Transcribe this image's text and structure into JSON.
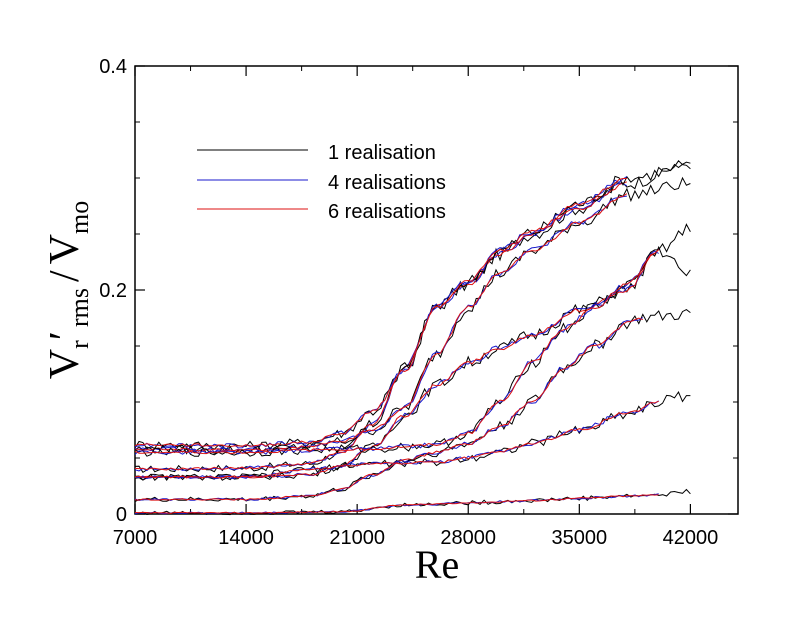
{
  "chart_data": {
    "type": "line",
    "title": "",
    "xlabel": "Re",
    "ylabel": {
      "main": "V",
      "sub1": "r",
      "prime": "′",
      "sub2": "rms",
      "slash": "/",
      "denom": "V",
      "denom_sub": "mo"
    },
    "xlim": [
      7000,
      45000
    ],
    "ylim": [
      0,
      0.4
    ],
    "xticks": [
      7000,
      14000,
      21000,
      28000,
      35000,
      42000
    ],
    "xtick_labels": [
      "7000",
      "14000",
      "21000",
      "28000",
      "35000",
      "42000"
    ],
    "yticks": [
      0,
      0.2,
      0.4
    ],
    "ytick_labels": [
      "0",
      "0.2",
      "0.4"
    ],
    "grid": false,
    "legend": {
      "position": "top-left",
      "entries": [
        {
          "label": "1 realisation",
          "color": "#000000"
        },
        {
          "label": "4 realisations",
          "color": "#1a1acc"
        },
        {
          "label": "6 realisations",
          "color": "#dd1111"
        }
      ]
    },
    "curves": [
      {
        "name": "curve-A",
        "xmax": 42000,
        "black_end": 0.313,
        "points": [
          [
            7000,
            0.04
          ],
          [
            14000,
            0.041
          ],
          [
            18000,
            0.045
          ],
          [
            20000,
            0.055
          ],
          [
            22000,
            0.08
          ],
          [
            24000,
            0.13
          ],
          [
            26000,
            0.185
          ],
          [
            28000,
            0.205
          ],
          [
            30000,
            0.232
          ],
          [
            32000,
            0.25
          ],
          [
            35000,
            0.273
          ],
          [
            38000,
            0.295
          ]
        ]
      },
      {
        "name": "curve-B",
        "xmax": 42000,
        "black_end": 0.31,
        "points": [
          [
            7000,
            0.062
          ],
          [
            14000,
            0.061
          ],
          [
            18000,
            0.064
          ],
          [
            20000,
            0.072
          ],
          [
            22000,
            0.092
          ],
          [
            24000,
            0.128
          ],
          [
            26000,
            0.185
          ],
          [
            28000,
            0.208
          ],
          [
            30000,
            0.235
          ],
          [
            32000,
            0.252
          ],
          [
            35000,
            0.277
          ],
          [
            38000,
            0.3
          ]
        ]
      },
      {
        "name": "curve-C",
        "xmax": 42000,
        "black_end": 0.295,
        "points": [
          [
            7000,
            0.058
          ],
          [
            14000,
            0.057
          ],
          [
            18000,
            0.06
          ],
          [
            20000,
            0.065
          ],
          [
            22000,
            0.075
          ],
          [
            24000,
            0.095
          ],
          [
            26000,
            0.143
          ],
          [
            28000,
            0.185
          ],
          [
            30000,
            0.215
          ],
          [
            32000,
            0.235
          ],
          [
            35000,
            0.26
          ],
          [
            38000,
            0.285
          ]
        ]
      },
      {
        "name": "curve-D",
        "xmax": 42000,
        "black_end": 0.255,
        "points": [
          [
            7000,
            0.033
          ],
          [
            14000,
            0.033
          ],
          [
            18000,
            0.035
          ],
          [
            20000,
            0.043
          ],
          [
            22000,
            0.06
          ],
          [
            24000,
            0.088
          ],
          [
            26000,
            0.115
          ],
          [
            28000,
            0.135
          ],
          [
            30000,
            0.148
          ],
          [
            32000,
            0.16
          ],
          [
            35000,
            0.182
          ],
          [
            38000,
            0.2
          ],
          [
            40000,
            0.235
          ]
        ]
      },
      {
        "name": "curve-E",
        "xmax": 42000,
        "black_end": 0.213,
        "points": [
          [
            7000,
            0.055
          ],
          [
            14000,
            0.055
          ],
          [
            18000,
            0.057
          ],
          [
            20000,
            0.058
          ],
          [
            22000,
            0.058
          ],
          [
            24000,
            0.06
          ],
          [
            26000,
            0.062
          ],
          [
            28000,
            0.072
          ],
          [
            30000,
            0.1
          ],
          [
            32000,
            0.135
          ],
          [
            34000,
            0.165
          ],
          [
            36000,
            0.185
          ],
          [
            38000,
            0.205
          ],
          [
            40000,
            0.235
          ]
        ]
      },
      {
        "name": "curve-F",
        "xmax": 42000,
        "black_end": 0.178,
        "points": [
          [
            7000,
            0.013
          ],
          [
            14000,
            0.013
          ],
          [
            18000,
            0.016
          ],
          [
            20000,
            0.022
          ],
          [
            22000,
            0.035
          ],
          [
            24000,
            0.048
          ],
          [
            26000,
            0.055
          ],
          [
            28000,
            0.063
          ],
          [
            30000,
            0.078
          ],
          [
            32000,
            0.1
          ],
          [
            34000,
            0.13
          ],
          [
            36000,
            0.15
          ],
          [
            38000,
            0.17
          ],
          [
            39000,
            0.175
          ]
        ]
      },
      {
        "name": "curve-G",
        "xmax": 42000,
        "black_end": 0.107,
        "points": [
          [
            7000,
            0.033
          ],
          [
            14000,
            0.033
          ],
          [
            18000,
            0.04
          ],
          [
            22000,
            0.045
          ],
          [
            26000,
            0.046
          ],
          [
            28000,
            0.05
          ],
          [
            30000,
            0.056
          ],
          [
            32000,
            0.063
          ],
          [
            35000,
            0.075
          ],
          [
            38000,
            0.09
          ],
          [
            40000,
            0.1
          ]
        ]
      },
      {
        "name": "curve-H",
        "xmax": 42000,
        "black_end": 0.02,
        "points": [
          [
            7000,
            0.001
          ],
          [
            14000,
            0.001
          ],
          [
            20000,
            0.002
          ],
          [
            24000,
            0.008
          ],
          [
            28000,
            0.01
          ],
          [
            32000,
            0.012
          ],
          [
            35000,
            0.014
          ],
          [
            38000,
            0.016
          ],
          [
            40000,
            0.017
          ]
        ]
      }
    ]
  }
}
